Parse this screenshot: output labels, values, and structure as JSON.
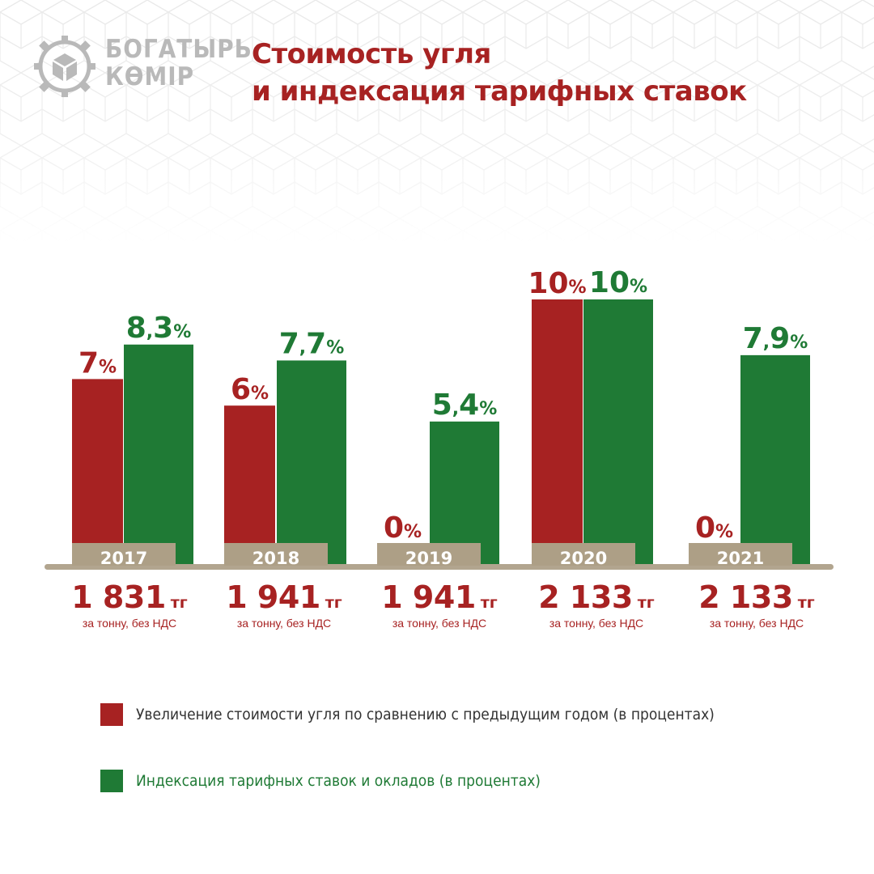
{
  "logo": {
    "line1": "БОГАТЫРЬ",
    "line2": "КӨМІР",
    "icon": "coal-cube-gear-logo"
  },
  "title_lines": [
    "Стоимость угля",
    "и индексация тарифных ставок"
  ],
  "colors": {
    "red": "#a72222",
    "green": "#1f7a35",
    "base": "#b2a58f",
    "year_box": "#ad9f86",
    "logo_gray": "#b9b9b9"
  },
  "chart_data": {
    "type": "bar",
    "categories": [
      "2017",
      "2018",
      "2019",
      "2020",
      "2021"
    ],
    "series": [
      {
        "name": "Увеличение стоимости угля по сравнению с предыдущим годом (в процентах)",
        "values": [
          7,
          6,
          0,
          10,
          0
        ],
        "labels": [
          "7",
          "6",
          "0",
          "10",
          "0"
        ],
        "color": "#a72222"
      },
      {
        "name": "Индексация тарифных ставок и окладов (в процентах)",
        "values": [
          8.3,
          7.7,
          5.4,
          10,
          7.9
        ],
        "labels": [
          "8,3",
          "7,7",
          "5,4",
          "10",
          "7,9"
        ],
        "color": "#1f7a35"
      }
    ],
    "percent_sign": "%",
    "ylim": [
      0,
      10
    ]
  },
  "prices": [
    {
      "value": "1 831",
      "currency": "тг",
      "note": "за тонну, без НДС"
    },
    {
      "value": "1 941",
      "currency": "тг",
      "note": "за тонну, без НДС"
    },
    {
      "value": "1 941",
      "currency": "тг",
      "note": "за тонну, без НДС"
    },
    {
      "value": "2 133",
      "currency": "тг",
      "note": "за тонну, без НДС"
    },
    {
      "value": "2 133",
      "currency": "тг",
      "note": "за тонну, без НДС"
    }
  ],
  "legend": [
    {
      "text": "Увеличение стоимости угля по сравнению с предыдущим годом (в процентах)",
      "color": "#a72222"
    },
    {
      "text": "Индексация тарифных ставок и окладов (в процентах)",
      "color": "#1f7a35"
    }
  ]
}
